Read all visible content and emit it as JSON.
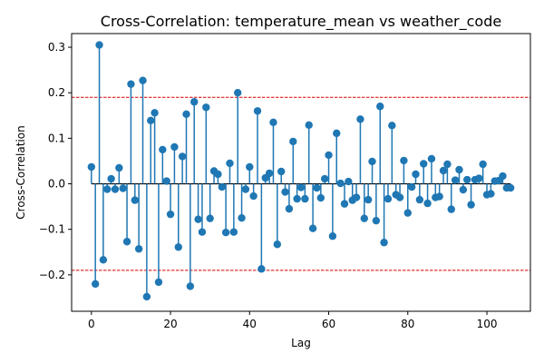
{
  "chart_data": {
    "type": "stem",
    "title": "Cross-Correlation: temperature_mean vs weather_code",
    "xlabel": "Lag",
    "ylabel": "Cross-Correlation",
    "xlim": [
      -5,
      111
    ],
    "ylim": [
      -0.28,
      0.33
    ],
    "xticks": [
      0,
      20,
      40,
      60,
      80,
      100
    ],
    "yticks": [
      -0.2,
      -0.1,
      0.0,
      0.1,
      0.2,
      0.3
    ],
    "ytick_labels": [
      "−0.2",
      "−0.1",
      "0.0",
      "0.1",
      "0.2",
      "0.3"
    ],
    "grid": false,
    "series": [
      {
        "color": "#1f77b4",
        "x": [
          0,
          1,
          2,
          3,
          4,
          5,
          6,
          7,
          8,
          9,
          10,
          11,
          12,
          13,
          14,
          15,
          16,
          17,
          18,
          19,
          20,
          21,
          22,
          23,
          24,
          25,
          26,
          27,
          28,
          29,
          30,
          31,
          32,
          33,
          34,
          35,
          36,
          37,
          38,
          39,
          40,
          41,
          42,
          43,
          44,
          45,
          46,
          47,
          48,
          49,
          50,
          51,
          52,
          53,
          54,
          55,
          56,
          57,
          58,
          59,
          60,
          61,
          62,
          63,
          64,
          65,
          66,
          67,
          68,
          69,
          70,
          71,
          72,
          73,
          74,
          75,
          76,
          77,
          78,
          79,
          80,
          81,
          82,
          83,
          84,
          85,
          86,
          87,
          88,
          89,
          90,
          91,
          92,
          93,
          94,
          95,
          96,
          97,
          98,
          99,
          100,
          101,
          102,
          103,
          104,
          105,
          106
        ],
        "values": [
          0.037,
          -0.22,
          0.305,
          -0.167,
          -0.012,
          0.011,
          -0.012,
          0.035,
          -0.01,
          -0.127,
          0.219,
          -0.036,
          -0.143,
          0.227,
          -0.248,
          0.139,
          0.156,
          -0.216,
          0.075,
          0.006,
          -0.067,
          0.081,
          -0.139,
          0.06,
          0.153,
          -0.225,
          0.18,
          -0.078,
          -0.106,
          0.168,
          -0.076,
          0.028,
          0.021,
          -0.007,
          -0.107,
          0.045,
          -0.106,
          0.2,
          -0.075,
          -0.012,
          0.037,
          -0.027,
          0.16,
          -0.187,
          0.013,
          0.023,
          0.135,
          -0.133,
          0.027,
          -0.018,
          -0.055,
          0.093,
          -0.033,
          -0.008,
          -0.033,
          0.129,
          -0.098,
          -0.009,
          -0.031,
          0.011,
          0.063,
          -0.115,
          0.111,
          0.001,
          -0.044,
          0.005,
          -0.036,
          -0.03,
          0.142,
          -0.076,
          -0.035,
          0.049,
          -0.081,
          0.17,
          -0.129,
          -0.033,
          0.128,
          -0.024,
          -0.03,
          0.051,
          -0.064,
          -0.007,
          0.021,
          -0.035,
          0.044,
          -0.043,
          0.055,
          -0.03,
          -0.028,
          0.029,
          0.043,
          -0.056,
          0.008,
          0.031,
          -0.013,
          0.009,
          -0.046,
          0.009,
          0.012,
          0.043,
          -0.024,
          -0.022,
          0.006,
          0.007,
          0.017,
          -0.009,
          -0.009
        ]
      }
    ],
    "baseline": 0,
    "reference_lines": [
      0.19,
      -0.19
    ],
    "reference_line_color": "#dd0000"
  }
}
